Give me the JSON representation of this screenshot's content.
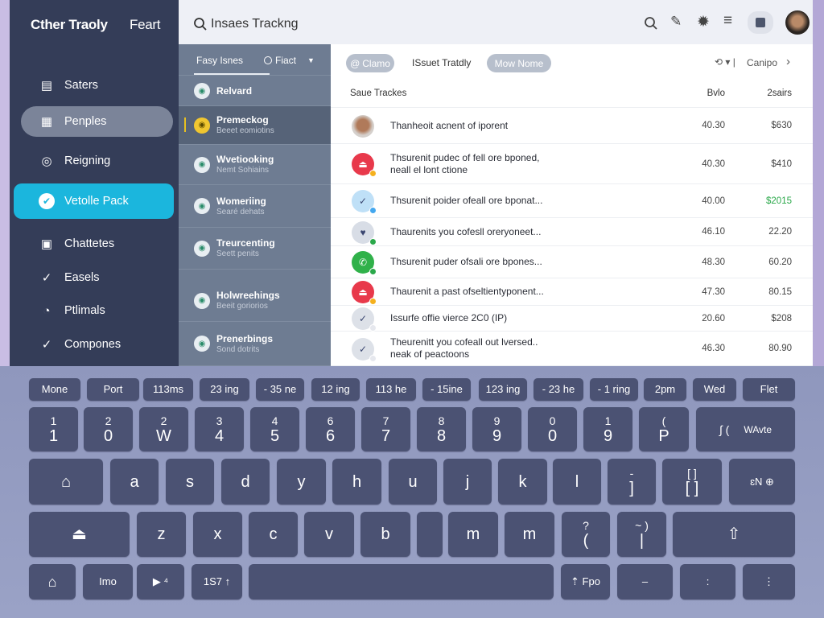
{
  "sidebar": {
    "title": "Cther Traoly",
    "title_right": "Feart",
    "items": [
      {
        "label": "Saters",
        "icon": "clipboard-icon",
        "glyph": "▤"
      },
      {
        "label": "Penples",
        "icon": "layout-icon",
        "glyph": "▦",
        "state": "selected"
      },
      {
        "label": "Reigning",
        "icon": "compass-icon",
        "glyph": "◎"
      },
      {
        "label": "Vetolle Pack",
        "icon": "check-circle-icon",
        "glyph": "✔",
        "state": "active"
      },
      {
        "label": "Chattetes",
        "icon": "bag-icon",
        "glyph": "▣"
      },
      {
        "label": "Easels",
        "icon": "check-circle-icon",
        "glyph": "✓"
      },
      {
        "label": "Ptlimals",
        "icon": "clock-icon",
        "glyph": "◔"
      },
      {
        "label": "Compones",
        "icon": "check-circle-icon",
        "glyph": "✓"
      }
    ]
  },
  "topbar": {
    "search_text": "Insaes Trackng",
    "icons": [
      "search-icon",
      "pen-icon",
      "gear-icon",
      "menu-icon",
      "note-icon",
      "avatar"
    ]
  },
  "mid": {
    "tab_active": "Fasy Isnes",
    "tab_filter": "Fiact",
    "items": [
      {
        "title": "Relvard",
        "sub": ""
      },
      {
        "title": "Premeckog",
        "sub": "Beeet eomiotins",
        "selected": true
      },
      {
        "title": "Wvetiooking",
        "sub": "Nemt Sohiains"
      },
      {
        "title": "Womeriing",
        "sub": "Searé dehats"
      },
      {
        "title": "Treurcenting",
        "sub": "Seett penits"
      },
      {
        "title": "Holwreehings",
        "sub": "Beeit goriorios"
      },
      {
        "title": "Prenerbings",
        "sub": "Sond dotrits"
      }
    ]
  },
  "main": {
    "chip1": "Clamo",
    "label": "ISsuet Tratdly",
    "chip2": "Mow Nome",
    "right_label": "Canipo",
    "header": {
      "col0": "Saue Trackes",
      "col1": "Bvlo",
      "col2": "2sairs"
    },
    "accent_green": "#2aa84a",
    "rows": [
      {
        "text": "Thanheoit acnent of iporent",
        "text2": "",
        "v1": "40.30",
        "v2": "$630",
        "icon": "avatar",
        "color": "#b8a99a"
      },
      {
        "text": "Thsurenit pudec of fell ore bponed,",
        "text2": "neall el lont ctione",
        "v1": "40.30",
        "v2": "$410",
        "icon": "alert-icon",
        "color": "#e8394b",
        "dot": "#f5b11e"
      },
      {
        "text": "Thsurenit poider ofeall ore bponat...",
        "text2": "",
        "v1": "40.00",
        "v2": "$2015",
        "icon": "check-icon",
        "color": "#bfe0f7",
        "dot": "#44a8ef",
        "green": true
      },
      {
        "text": "Thaurenits you cofesll oreryoneet...",
        "text2": "",
        "v1": "46.10",
        "v2": "22.20",
        "icon": "heart-check-icon",
        "color": "#d8dde6",
        "dot": "#2aa84a"
      },
      {
        "text": "Thsurenit puder ofsali ore bpones...",
        "text2": "",
        "v1": "48.30",
        "v2": "60.20",
        "icon": "phone-icon",
        "color": "#30b14a",
        "dot": "#2aa84a"
      },
      {
        "text": "Thaurenit a past ofseltientyponent...",
        "text2": "",
        "v1": "47.30",
        "v2": "80.15",
        "icon": "alert-icon",
        "color": "#e8394b",
        "dot": "#f5b11e"
      },
      {
        "text": "Issurfe offie vierce 2C0 (IP)",
        "text2": "",
        "v1": "20.60",
        "v2": "$208",
        "icon": "check-icon",
        "color": "#dde1e8",
        "dot": "#e6e8ee"
      },
      {
        "text": "Theurenitt you cofeall out lversed..",
        "text2": "neak of peactoons",
        "v1": "46.30",
        "v2": "80.90",
        "icon": "check-icon",
        "color": "#dde1e8",
        "dot": "#e6e8ee"
      }
    ]
  },
  "keyboard": {
    "rows": [
      [
        [
          "Mone"
        ],
        [
          "Port"
        ],
        [
          "113ms"
        ],
        [
          "23 ing"
        ],
        [
          "- 35 ne"
        ],
        [
          "12 ing"
        ],
        [
          "113 he"
        ],
        [
          "- 15ine"
        ],
        [
          "123 ing"
        ],
        [
          "- 23 he"
        ],
        [
          "- 1 ring"
        ],
        [
          "2pm"
        ],
        [
          "Wed"
        ],
        [
          "Flet"
        ]
      ],
      [
        [
          "1",
          "1"
        ],
        [
          "2",
          "0"
        ],
        [
          "2",
          "W"
        ],
        [
          "3",
          "4"
        ],
        [
          "4",
          "5"
        ],
        [
          "6",
          "6"
        ],
        [
          "7",
          "7"
        ],
        [
          "8",
          "8"
        ],
        [
          "9",
          "9"
        ],
        [
          "0",
          "0"
        ],
        [
          "1",
          "9"
        ],
        [
          "(",
          "P"
        ],
        [
          "∫ (",
          "WAvte"
        ]
      ],
      [
        [
          "⌂"
        ],
        [
          "a"
        ],
        [
          "s"
        ],
        [
          "d"
        ],
        [
          "y"
        ],
        [
          "h"
        ],
        [
          "u"
        ],
        [
          "j"
        ],
        [
          "k"
        ],
        [
          "l"
        ],
        [
          "-",
          "]"
        ],
        [
          "[ ]",
          "[ ]"
        ],
        [
          "ɛN ⊕"
        ]
      ],
      [
        [
          "⏏"
        ],
        [
          "z"
        ],
        [
          "x"
        ],
        [
          "c"
        ],
        [
          "v"
        ],
        [
          "b"
        ],
        [
          ""
        ],
        [
          "m"
        ],
        [
          "m"
        ],
        [
          "?",
          "("
        ],
        [
          "~ )",
          "|"
        ],
        [
          "⇧"
        ]
      ],
      [
        [
          "⌂"
        ],
        [
          "Imo"
        ],
        [
          "▶ ⁴"
        ],
        [
          "1S7 ↑"
        ],
        [
          ""
        ],
        [
          "⇡ Fpo"
        ],
        [
          "–"
        ],
        [
          ":"
        ],
        [
          "⋮"
        ]
      ]
    ]
  }
}
